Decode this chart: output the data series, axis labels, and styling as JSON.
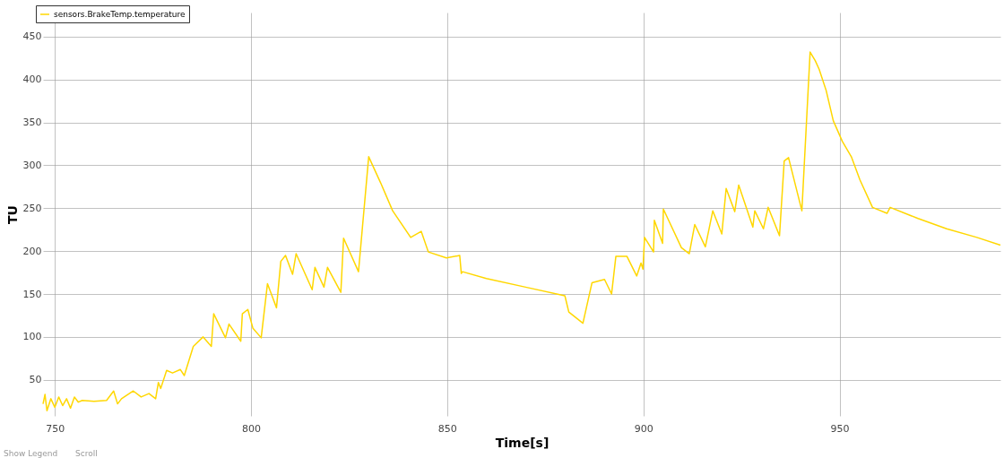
{
  "chart_data": {
    "type": "line",
    "xlabel": "Time[s]",
    "ylabel": "TU",
    "x": [
      747,
      747.5,
      748,
      749,
      750,
      751,
      752,
      753,
      754,
      755,
      756,
      757,
      760,
      763.2,
      765,
      766,
      767,
      770,
      772,
      774,
      775.7,
      776.4,
      777,
      778.5,
      780,
      782,
      783,
      785.3,
      787.8,
      789.9,
      790.5,
      793.5,
      794.4,
      797.4,
      797.8,
      799.2,
      800.5,
      802.6,
      804.2,
      806.5,
      807.6,
      808.8,
      810.6,
      811.5,
      815.6,
      816.3,
      818.6,
      819.5,
      822.9,
      823.6,
      827.4,
      830,
      833,
      836.1,
      840.7,
      843.4,
      845.2,
      849.8,
      853.2,
      853.6,
      853.9,
      860,
      870,
      880,
      881,
      884.6,
      886.9,
      890.1,
      891.9,
      893,
      895.8,
      898.3,
      899.4,
      899.9,
      900.3,
      902.6,
      902.8,
      904.9,
      905.1,
      909.7,
      911.7,
      913.1,
      915.8,
      917.7,
      920,
      921.1,
      923.3,
      924.3,
      927.9,
      928.4,
      930.6,
      931.8,
      934.7,
      935.9,
      937,
      940.4,
      942.5,
      943.8,
      944.8,
      946.6,
      948.4,
      950.7,
      953,
      955.2,
      958.4,
      962.1,
      962.9,
      970,
      977.3,
      985,
      991
    ],
    "series": [
      {
        "name": "sensors.BrakeTemp.temperature",
        "color": "#ffd700",
        "values": [
          22,
          33,
          14,
          28,
          18,
          30,
          20,
          28,
          17,
          30,
          24,
          26,
          25,
          26,
          37,
          22,
          28,
          37,
          30,
          34,
          28,
          47,
          40,
          61,
          58,
          62,
          55,
          89,
          100,
          89,
          127,
          99,
          115,
          95,
          127,
          132,
          110,
          99,
          162,
          134,
          188,
          195,
          173,
          197,
          155,
          181,
          158,
          181,
          152,
          215,
          176,
          310,
          280,
          247,
          216,
          223,
          199,
          192,
          195,
          174,
          176,
          168,
          158,
          148,
          129,
          116,
          163,
          167,
          150,
          194,
          194,
          171,
          186,
          179,
          216,
          199,
          236,
          209,
          249,
          204,
          197,
          231,
          205,
          247,
          220,
          273,
          246,
          277,
          228,
          247,
          226,
          251,
          218,
          305,
          309,
          247,
          432,
          422,
          412,
          387,
          352,
          328,
          310,
          283,
          251,
          244,
          251,
          238,
          226,
          216,
          207
        ]
      }
    ],
    "xlim": [
      747,
      991
    ],
    "ylim": [
      8,
      478
    ],
    "xticks": [
      750,
      800,
      850,
      900,
      950
    ],
    "yticks": [
      50,
      100,
      150,
      200,
      250,
      300,
      350,
      400,
      450
    ],
    "grid": true,
    "legend": "top left",
    "marker": "none",
    "line_style": "solid",
    "annotations": [
      "Show Legend",
      "Scroll"
    ]
  }
}
